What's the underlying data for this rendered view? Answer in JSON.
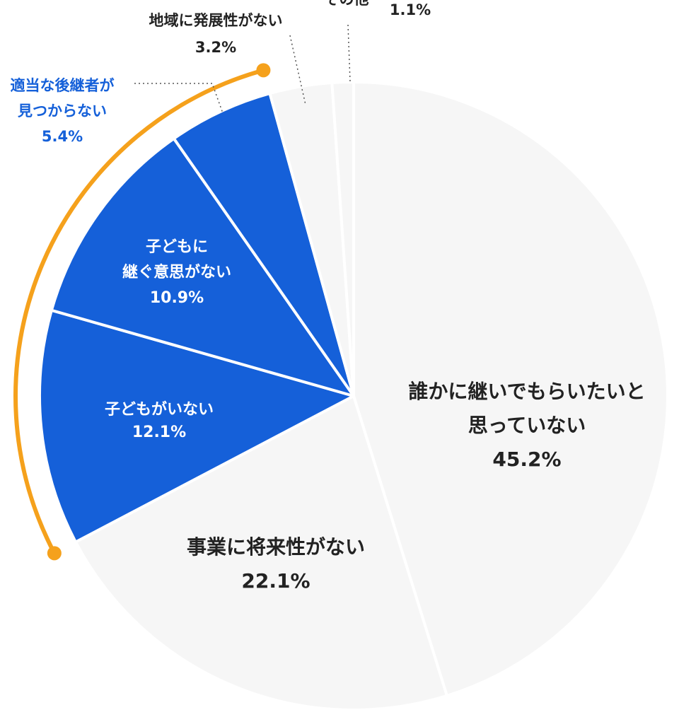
{
  "chart_data": {
    "type": "pie",
    "categories": [
      [
        "誰かに継いでもらいたいと",
        "思っていない"
      ],
      [
        "事業に将来性がない"
      ],
      [
        "子どもがいない"
      ],
      [
        "子どもに",
        "継ぐ意思がない"
      ],
      [
        "適当な後継者が",
        "見つからない"
      ],
      [
        "地域に発展性がない"
      ],
      [
        "その他"
      ]
    ],
    "values": [
      45.2,
      22.1,
      12.1,
      10.9,
      5.4,
      3.2,
      1.1
    ],
    "value_labels": [
      "45.2%",
      "22.1%",
      "12.1%",
      "10.9%",
      "5.4%",
      "3.2%",
      "1.1%"
    ],
    "colors": [
      "#f6f6f6",
      "#f6f6f6",
      "#1560d9",
      "#1560d9",
      "#1560d9",
      "#f6f6f6",
      "#f6f6f6"
    ],
    "highlight_color": "#f5a11c"
  }
}
